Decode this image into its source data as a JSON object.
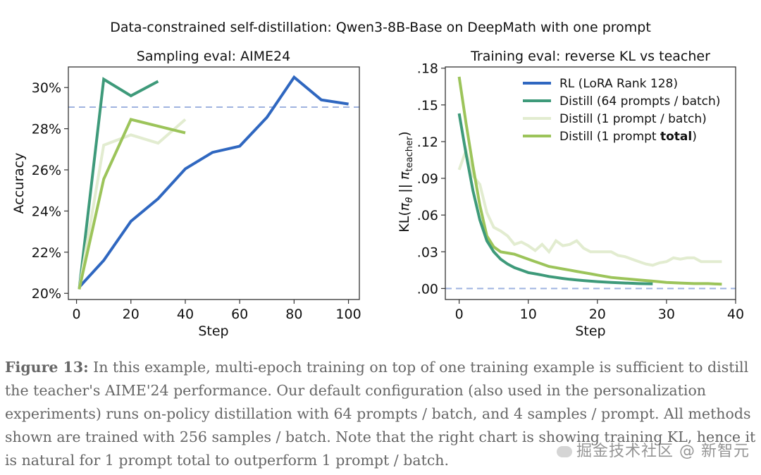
{
  "figure": {
    "suptitle": "Data-constrained self-distillation: Qwen3-8B-Base on DeepMath with one prompt",
    "caption": {
      "label": "Figure 13:",
      "text": " In this example, multi-epoch training on top of one training example is sufficient to distill the teacher's AIME'24 performance. Our default configuration (also used in the personalization experiments) runs on-policy distillation with 64 prompts / batch, and 4 samples / prompt. All methods shown are trained with 256 samples / batch. Note that the right chart is showing training KL, hence it is natural for 1 prompt total to outperform 1 prompt / batch."
    },
    "watermark": "掘金技术社区 @ 新智元"
  },
  "colors": {
    "rl": "#2f67c0",
    "distill_64": "#3e9a7a",
    "distill_1_batch": "#e2ecd0",
    "distill_1_total": "#9cc45a",
    "reference": "#9fb3e0",
    "axis": "#333333"
  },
  "chart_data": [
    {
      "type": "line",
      "title": "Sampling eval: AIME24",
      "xlabel": "Step",
      "ylabel": "Accuracy",
      "xlim": [
        -3,
        104
      ],
      "ylim": [
        19.7,
        31.0
      ],
      "xticks": [
        0,
        20,
        40,
        60,
        80,
        100
      ],
      "xtick_labels": [
        "0",
        "20",
        "40",
        "60",
        "80",
        "100"
      ],
      "yticks": [
        20,
        22,
        24,
        26,
        28,
        30
      ],
      "ytick_labels": [
        "20%",
        "22%",
        "24%",
        "26%",
        "28%",
        "30%"
      ],
      "grid": false,
      "reference_line": {
        "y": 29.05,
        "style": "dashed",
        "label": "teacher"
      },
      "series": [
        {
          "name": "RL (LoRA Rank 128)",
          "key": "rl",
          "x": [
            1,
            10,
            20,
            30,
            40,
            50,
            60,
            70,
            80,
            90,
            100
          ],
          "y": [
            20.3,
            21.6,
            23.5,
            24.6,
            26.05,
            26.85,
            27.15,
            28.55,
            30.5,
            29.4,
            29.2
          ]
        },
        {
          "name": "Distill (64 prompts / batch)",
          "key": "distill_64",
          "x": [
            1,
            10,
            20,
            30
          ],
          "y": [
            20.2,
            30.4,
            29.6,
            30.3
          ]
        },
        {
          "name": "Distill (1 prompt / batch)",
          "key": "distill_1_batch",
          "x": [
            1,
            10,
            20,
            30,
            40
          ],
          "y": [
            20.2,
            27.2,
            27.7,
            27.3,
            28.45
          ]
        },
        {
          "name": "Distill (1 prompt total)",
          "key": "distill_1_total",
          "x": [
            1,
            10,
            20,
            40
          ],
          "y": [
            20.2,
            25.55,
            28.45,
            27.8
          ]
        }
      ]
    },
    {
      "type": "line",
      "title": "Training eval: reverse KL vs teacher",
      "xlabel": "Step",
      "ylabel": "KL(π_θ || π_teacher)",
      "xlim": [
        -2,
        40
      ],
      "ylim": [
        -0.009,
        0.181
      ],
      "xticks": [
        0,
        10,
        20,
        30,
        40
      ],
      "xtick_labels": [
        "0",
        "10",
        "20",
        "30",
        "40"
      ],
      "yticks": [
        0.0,
        0.03,
        0.06,
        0.09,
        0.12,
        0.15,
        0.18
      ],
      "ytick_labels": [
        ".00",
        ".03",
        ".06",
        ".09",
        ".12",
        ".15",
        ".18"
      ],
      "grid": false,
      "legend": {
        "location": "top-right",
        "entries": [
          "RL (LoRA Rank 128)",
          "Distill (64 prompts / batch)",
          "Distill (1 prompt / batch)",
          "Distill (1 prompt total)"
        ],
        "bold_word": "total"
      },
      "reference_line": {
        "y": 0.0,
        "style": "dashed"
      },
      "series": [
        {
          "name": "Distill (1 prompt / batch)",
          "key": "distill_1_batch",
          "x": [
            0,
            1,
            2,
            3,
            4,
            5,
            6,
            7,
            8,
            9,
            10,
            11,
            12,
            13,
            14,
            15,
            16,
            17,
            18,
            19,
            20,
            21,
            22,
            23,
            24,
            25,
            26,
            27,
            28,
            29,
            30,
            31,
            32,
            33,
            34,
            35,
            36,
            37,
            38
          ],
          "y": [
            0.097,
            0.113,
            0.092,
            0.085,
            0.062,
            0.05,
            0.047,
            0.043,
            0.036,
            0.038,
            0.035,
            0.031,
            0.036,
            0.03,
            0.039,
            0.035,
            0.036,
            0.039,
            0.033,
            0.03,
            0.03,
            0.03,
            0.03,
            0.027,
            0.026,
            0.024,
            0.022,
            0.02,
            0.019,
            0.021,
            0.022,
            0.025,
            0.024,
            0.025,
            0.025,
            0.022,
            0.022,
            0.022,
            0.022
          ]
        },
        {
          "name": "Distill (1 prompt total)",
          "key": "distill_1_total",
          "x": [
            0,
            1,
            2,
            3,
            4,
            5,
            6,
            7,
            8,
            9,
            10,
            11,
            12,
            13,
            14,
            15,
            16,
            17,
            18,
            19,
            20,
            22,
            24,
            26,
            28,
            30,
            32,
            34,
            36,
            38
          ],
          "y": [
            0.173,
            0.135,
            0.1,
            0.068,
            0.043,
            0.034,
            0.03,
            0.029,
            0.028,
            0.026,
            0.024,
            0.022,
            0.02,
            0.018,
            0.017,
            0.016,
            0.015,
            0.014,
            0.013,
            0.012,
            0.011,
            0.009,
            0.008,
            0.007,
            0.006,
            0.005,
            0.0045,
            0.004,
            0.004,
            0.0035
          ]
        },
        {
          "name": "Distill (64 prompts / batch)",
          "key": "distill_64",
          "x": [
            0,
            1,
            2,
            3,
            4,
            5,
            6,
            7,
            8,
            9,
            10,
            11,
            12,
            13,
            14,
            15,
            16,
            17,
            18,
            19,
            20,
            22,
            24,
            26,
            28
          ],
          "y": [
            0.143,
            0.11,
            0.08,
            0.056,
            0.039,
            0.03,
            0.024,
            0.02,
            0.017,
            0.015,
            0.013,
            0.012,
            0.011,
            0.0098,
            0.009,
            0.0082,
            0.0075,
            0.007,
            0.0065,
            0.006,
            0.0056,
            0.005,
            0.0045,
            0.004,
            0.0038
          ]
        }
      ]
    }
  ]
}
